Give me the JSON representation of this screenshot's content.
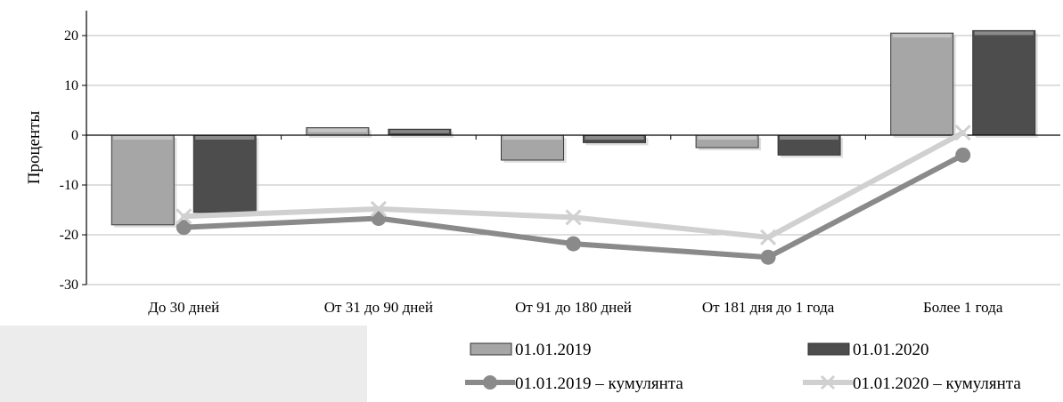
{
  "chart_data": {
    "type": "bar",
    "ylabel": "Проценты",
    "ylim": [
      -30,
      25
    ],
    "yticks": [
      20,
      10,
      0,
      -10,
      -20,
      -30
    ],
    "grid": true,
    "legend_position": "bottom",
    "categories": [
      "До 30 дней",
      "От 31 до 90  дней",
      "От 91 до 180  дней",
      "От 181 дня до 1 года",
      "Более 1 года"
    ],
    "series": [
      {
        "name": "01.01.2019",
        "kind": "bar",
        "color": "#a6a6a6",
        "values": [
          -18,
          1.5,
          -5,
          -2.5,
          20.5
        ]
      },
      {
        "name": "01.01.2020",
        "kind": "bar",
        "color": "#4d4d4d",
        "values": [
          -15.5,
          1.2,
          -1.5,
          -4,
          21
        ]
      },
      {
        "name": "01.01.2019 – кумулянта",
        "kind": "line",
        "marker": "circle",
        "color": "#8a8a8a",
        "values": [
          -18.5,
          -16.7,
          -21.8,
          -24.5,
          -4
        ]
      },
      {
        "name": "01.01.2020 – кумулянта",
        "kind": "line",
        "marker": "x",
        "color": "#d0d0d0",
        "values": [
          -16.3,
          -14.8,
          -16.5,
          -20.5,
          0.5
        ]
      }
    ]
  }
}
